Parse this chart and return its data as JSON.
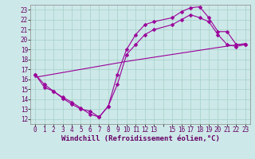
{
  "xlabel": "Windchill (Refroidissement éolien,°C)",
  "bg_color": "#cde8e8",
  "line_color": "#990099",
  "grid_color": "#aad4cc",
  "xlim": [
    -0.5,
    23.5
  ],
  "ylim": [
    11.5,
    23.5
  ],
  "xtick_labels": [
    "0",
    "1",
    "2",
    "3",
    "4",
    "5",
    "6",
    "7",
    "8",
    "9",
    "10",
    "11",
    "12",
    "13",
    "",
    "15",
    "16",
    "17",
    "18",
    "19",
    "20",
    "21",
    "22",
    "23"
  ],
  "xtick_positions": [
    0,
    1,
    2,
    3,
    4,
    5,
    6,
    7,
    8,
    9,
    10,
    11,
    12,
    13,
    14,
    15,
    16,
    17,
    18,
    19,
    20,
    21,
    22,
    23
  ],
  "yticks": [
    12,
    13,
    14,
    15,
    16,
    17,
    18,
    19,
    20,
    21,
    22,
    23
  ],
  "line1_x": [
    0,
    1,
    2,
    3,
    4,
    5,
    6,
    7,
    8,
    9,
    10,
    11,
    12,
    13,
    15,
    16,
    17,
    18,
    19,
    20,
    21,
    22,
    23
  ],
  "line1_y": [
    16.5,
    15.5,
    14.8,
    14.2,
    13.7,
    13.1,
    12.5,
    12.2,
    13.3,
    16.5,
    19.0,
    20.5,
    21.5,
    21.8,
    22.2,
    22.8,
    23.2,
    23.3,
    22.2,
    20.8,
    20.8,
    19.5,
    19.5
  ],
  "line2_x": [
    0,
    1,
    2,
    3,
    4,
    5,
    6,
    7,
    8,
    9,
    10,
    11,
    12,
    13,
    15,
    16,
    17,
    18,
    19,
    20,
    21,
    22,
    23
  ],
  "line2_y": [
    16.5,
    15.2,
    14.8,
    14.1,
    13.5,
    13.0,
    12.8,
    12.2,
    13.3,
    15.5,
    18.5,
    19.5,
    20.5,
    21.0,
    21.5,
    22.0,
    22.5,
    22.2,
    21.8,
    20.5,
    19.5,
    19.3,
    19.5
  ],
  "line3_x": [
    0,
    5,
    10,
    15,
    20,
    23
  ],
  "line3_y": [
    16.2,
    17.0,
    17.8,
    18.5,
    19.2,
    19.6
  ],
  "marker_size": 2.5,
  "lw": 0.8,
  "xlabel_fontsize": 6.5,
  "tick_fontsize": 5.5
}
